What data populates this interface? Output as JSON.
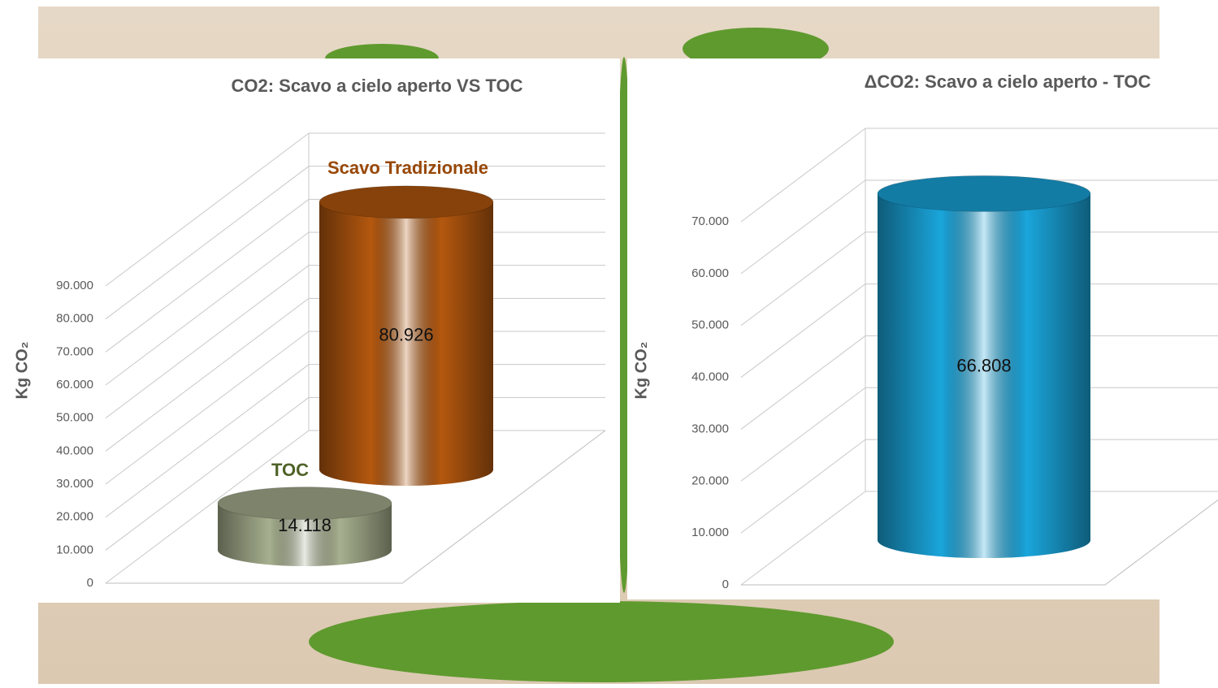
{
  "chart_data": [
    {
      "type": "cylinder3d",
      "title": "CO2: Scavo a cielo aperto VS TOC",
      "y_label": "Kg CO₂",
      "categories": [
        "TOC",
        "Scavo Tradizionale"
      ],
      "values": [
        14118,
        80926
      ],
      "value_labels": [
        "14.118",
        "80.926"
      ],
      "colors": [
        "#a7b08f",
        "#b4580f"
      ],
      "label_colors": [
        "#4f6228",
        "#984807"
      ],
      "ylim": [
        0,
        90000
      ],
      "yticks": [
        0,
        {
          "value": 10000,
          "label": "10.000"
        },
        {
          "value": 20000,
          "label": "20.000"
        },
        {
          "value": 30000,
          "label": "30.000"
        },
        {
          "value": 40000,
          "label": "40.000"
        },
        {
          "value": 50000,
          "label": "50.000"
        },
        {
          "value": 60000,
          "label": "60.000"
        },
        {
          "value": 70000,
          "label": "70.000"
        },
        {
          "value": 80000,
          "label": "80.000"
        },
        {
          "value": 90000,
          "label": "90.000"
        }
      ],
      "grid": true
    },
    {
      "type": "cylinder3d",
      "title": "ΔCO2: Scavo a cielo aperto - TOC",
      "y_label": "Kg CO₂",
      "categories": [
        null
      ],
      "values": [
        66808
      ],
      "value_labels": [
        "66.808"
      ],
      "colors": [
        "#1aa6dc"
      ],
      "ylim": [
        0,
        70000
      ],
      "yticks": [
        0,
        {
          "value": 10000,
          "label": "10.000"
        },
        {
          "value": 20000,
          "label": "20.000"
        },
        {
          "value": 30000,
          "label": "30.000"
        },
        {
          "value": 40000,
          "label": "40.000"
        },
        {
          "value": 50000,
          "label": "50.000"
        },
        {
          "value": 60000,
          "label": "60.000"
        },
        {
          "value": 70000,
          "label": "70.000"
        }
      ],
      "grid": true
    }
  ]
}
